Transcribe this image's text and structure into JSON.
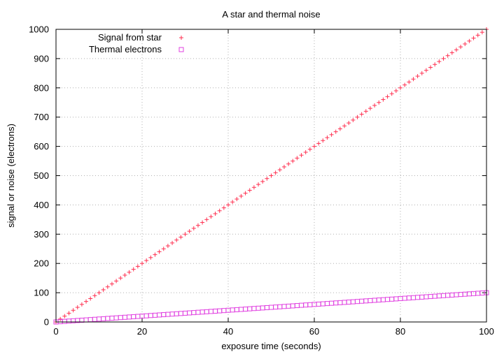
{
  "chart_data": {
    "type": "scatter",
    "title": "A star and thermal noise",
    "xlabel": "exposure time (seconds)",
    "ylabel": "signal or noise (electrons)",
    "xlim": [
      0,
      100
    ],
    "ylim": [
      0,
      1000
    ],
    "xticks": [
      0,
      20,
      40,
      60,
      80,
      100
    ],
    "yticks": [
      0,
      100,
      200,
      300,
      400,
      500,
      600,
      700,
      800,
      900,
      1000
    ],
    "grid": true,
    "legend_position": "top-left",
    "x": [
      0,
      1,
      2,
      3,
      4,
      5,
      6,
      7,
      8,
      9,
      10,
      11,
      12,
      13,
      14,
      15,
      16,
      17,
      18,
      19,
      20,
      21,
      22,
      23,
      24,
      25,
      26,
      27,
      28,
      29,
      30,
      31,
      32,
      33,
      34,
      35,
      36,
      37,
      38,
      39,
      40,
      41,
      42,
      43,
      44,
      45,
      46,
      47,
      48,
      49,
      50,
      51,
      52,
      53,
      54,
      55,
      56,
      57,
      58,
      59,
      60,
      61,
      62,
      63,
      64,
      65,
      66,
      67,
      68,
      69,
      70,
      71,
      72,
      73,
      74,
      75,
      76,
      77,
      78,
      79,
      80,
      81,
      82,
      83,
      84,
      85,
      86,
      87,
      88,
      89,
      90,
      91,
      92,
      93,
      94,
      95,
      96,
      97,
      98,
      99,
      100
    ],
    "series": [
      {
        "name": "Signal from star",
        "marker": "plus",
        "color": "#ff3050",
        "slope": 10
      },
      {
        "name": "Thermal electrons",
        "marker": "square",
        "color": "#e040e0",
        "slope": 1
      }
    ]
  }
}
